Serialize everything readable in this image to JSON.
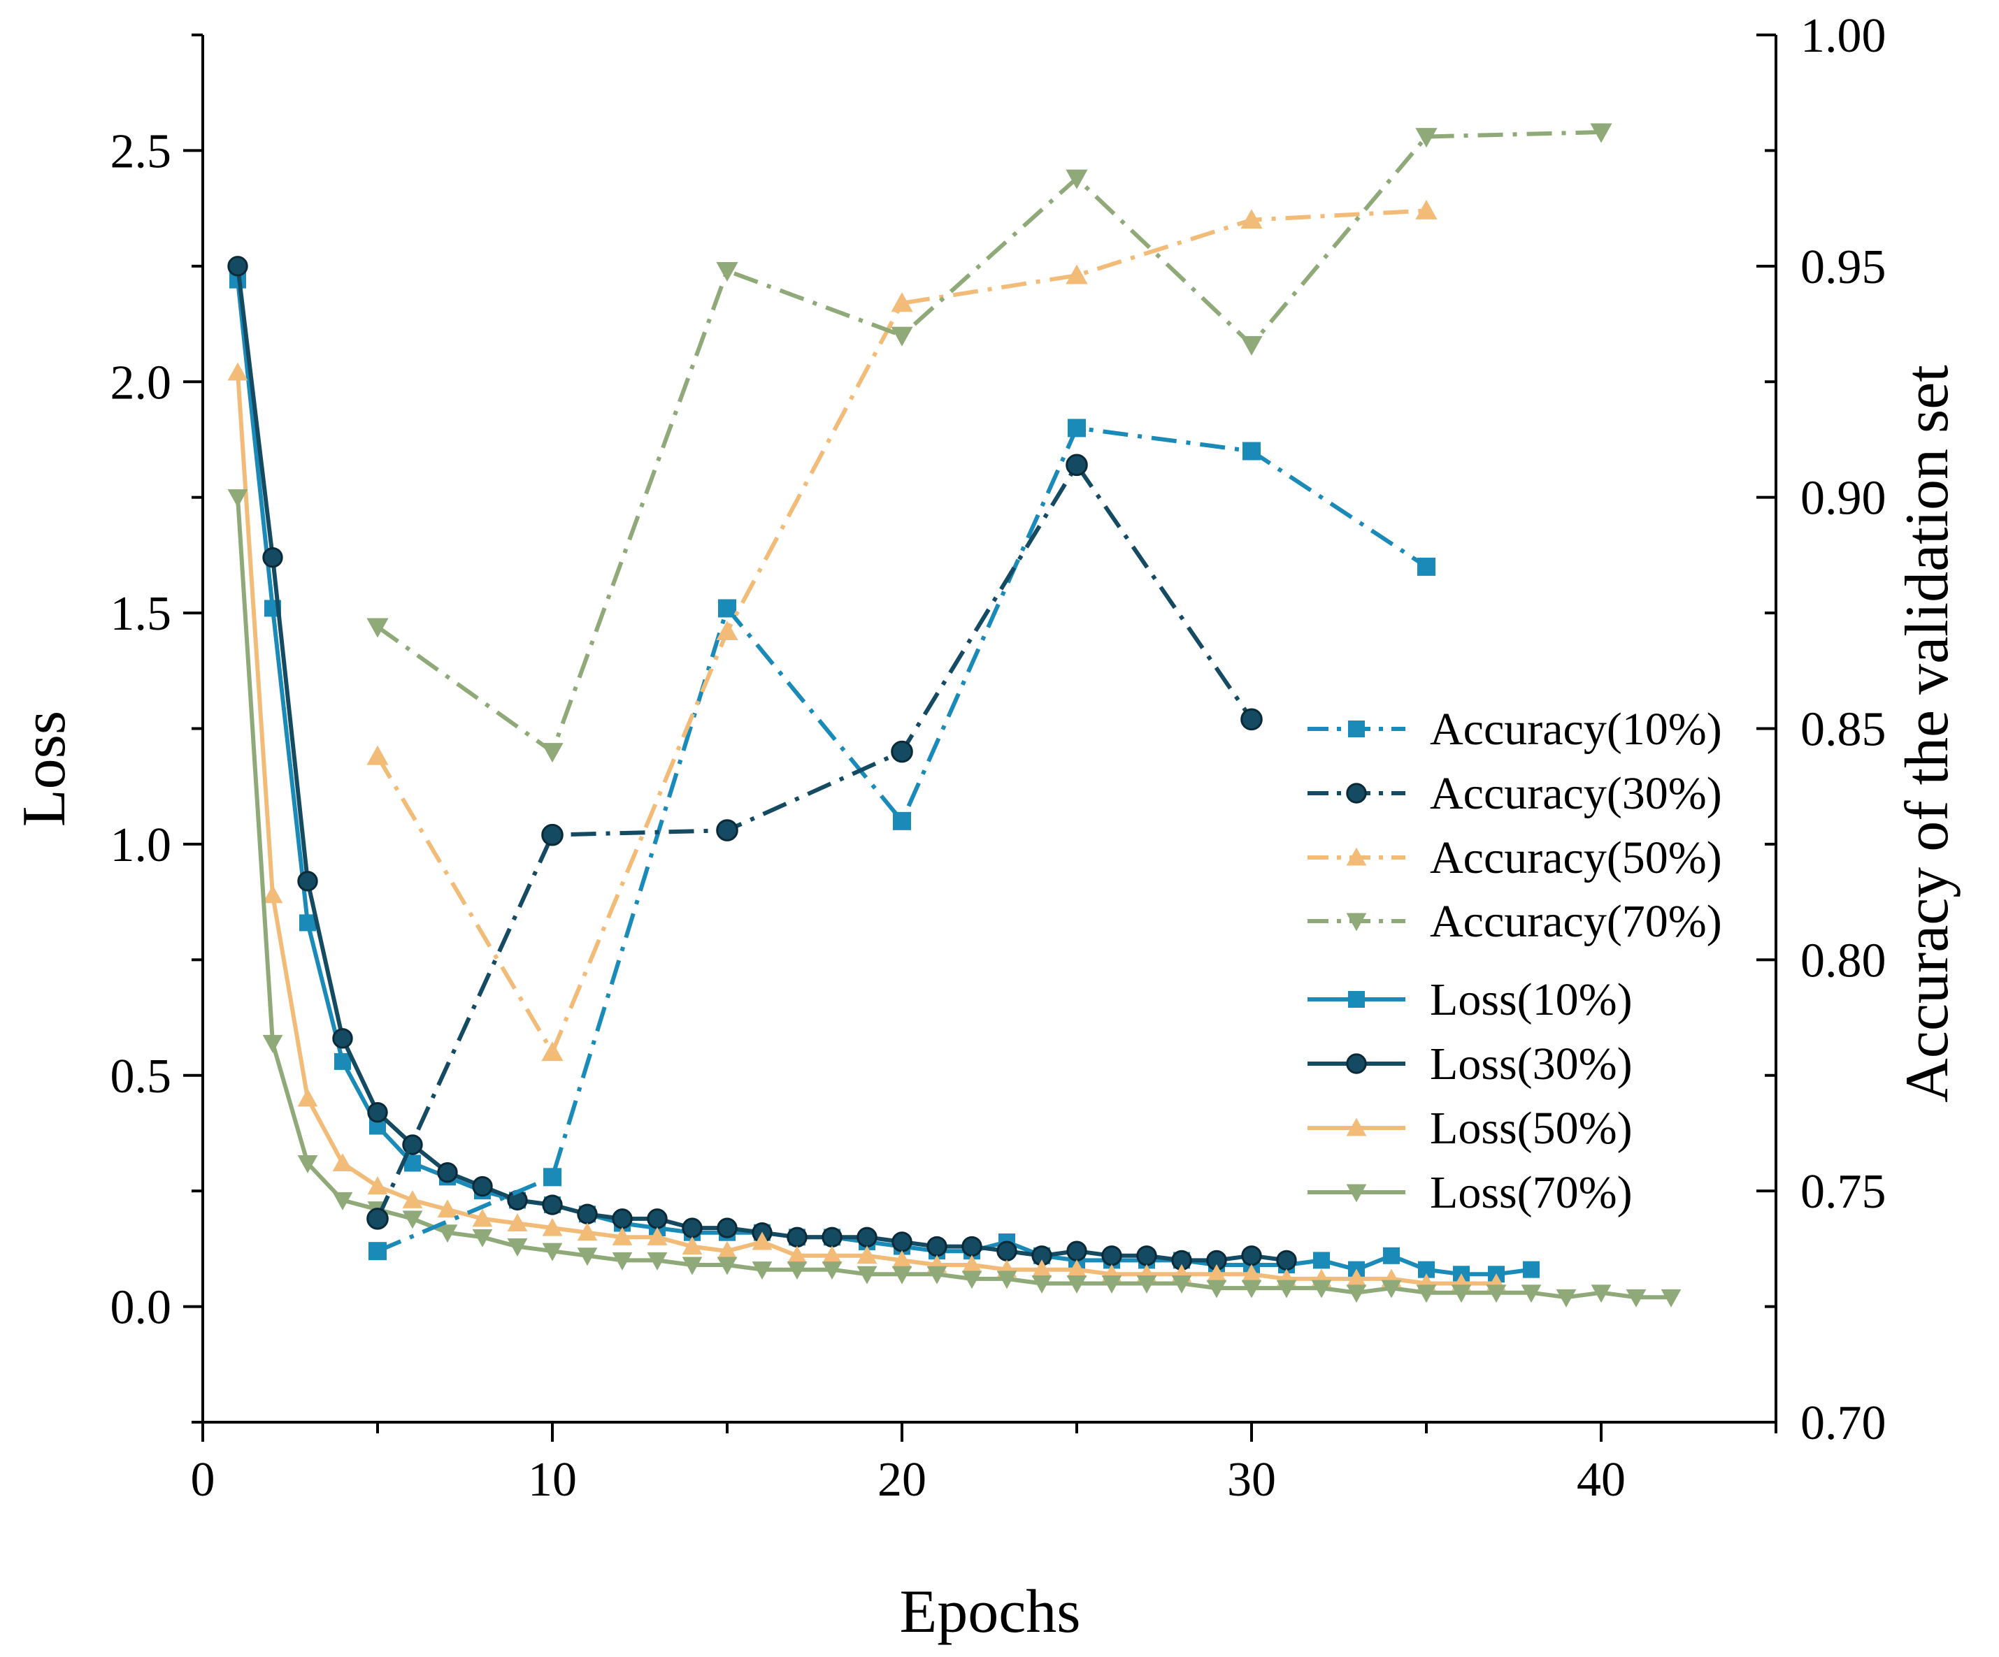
{
  "chart_data": {
    "type": "line",
    "title": "",
    "xlabel": "Epochs",
    "ylabel": "Loss",
    "y2label": "Accuracy of the validation set",
    "xlim": [
      0,
      45
    ],
    "ylim": [
      -0.25,
      2.75
    ],
    "y2lim": [
      0.7,
      1.0
    ],
    "xticks": [
      0,
      10,
      20,
      30,
      40
    ],
    "xtick_labels": [
      "0",
      "10",
      "20",
      "30",
      "40"
    ],
    "yticks": [
      0.0,
      0.5,
      1.0,
      1.5,
      2.0,
      2.5
    ],
    "ytick_labels": [
      "0.0",
      "0.5",
      "1.0",
      "1.5",
      "2.0",
      "2.5"
    ],
    "y2ticks": [
      0.7,
      0.75,
      0.8,
      0.85,
      0.9,
      0.95,
      1.0
    ],
    "y2tick_labels": [
      "0.70",
      "0.75",
      "0.80",
      "0.85",
      "0.90",
      "0.95",
      "1.00"
    ],
    "legend_position": "center-right",
    "series": [
      {
        "name": "Accuracy(10%)",
        "axis": "right",
        "style": "dashdot",
        "marker": "square",
        "color": "#1a8ab8",
        "x": [
          5,
          10,
          15,
          20,
          25,
          30,
          35
        ],
        "y": [
          0.737,
          0.753,
          0.876,
          0.83,
          0.915,
          0.91,
          0.885
        ]
      },
      {
        "name": "Accuracy(30%)",
        "axis": "right",
        "style": "dashdot",
        "marker": "circle",
        "color": "#154a63",
        "x": [
          5,
          10,
          15,
          20,
          25,
          30
        ],
        "y": [
          0.744,
          0.827,
          0.828,
          0.845,
          0.907,
          0.852
        ]
      },
      {
        "name": "Accuracy(50%)",
        "axis": "right",
        "style": "dashdot",
        "marker": "triangle-up",
        "color": "#f2bc78",
        "x": [
          5,
          10,
          15,
          20,
          25,
          30,
          35
        ],
        "y": [
          0.844,
          0.78,
          0.871,
          0.942,
          0.948,
          0.96,
          0.962
        ]
      },
      {
        "name": "Accuracy(70%)",
        "axis": "right",
        "style": "dashdot",
        "marker": "triangle-down",
        "color": "#8faa78",
        "x": [
          5,
          10,
          15,
          20,
          25,
          30,
          35,
          40
        ],
        "y": [
          0.872,
          0.845,
          0.949,
          0.935,
          0.969,
          0.933,
          0.978,
          0.979
        ]
      },
      {
        "name": "Loss(10%)",
        "axis": "left",
        "style": "solid",
        "marker": "square",
        "color": "#1a8ab8",
        "x": [
          1,
          2,
          3,
          4,
          5,
          6,
          7,
          8,
          9,
          10,
          11,
          12,
          13,
          14,
          15,
          16,
          17,
          18,
          19,
          20,
          21,
          22,
          23,
          24,
          25,
          26,
          27,
          28,
          29,
          30,
          31,
          32,
          33,
          34,
          35,
          36,
          37,
          38
        ],
        "y": [
          2.22,
          1.51,
          0.83,
          0.53,
          0.39,
          0.31,
          0.28,
          0.25,
          0.23,
          0.22,
          0.2,
          0.18,
          0.17,
          0.16,
          0.16,
          0.16,
          0.15,
          0.15,
          0.14,
          0.13,
          0.12,
          0.12,
          0.14,
          0.11,
          0.1,
          0.1,
          0.1,
          0.1,
          0.09,
          0.09,
          0.09,
          0.1,
          0.08,
          0.11,
          0.08,
          0.07,
          0.07,
          0.08
        ]
      },
      {
        "name": "Loss(30%)",
        "axis": "left",
        "style": "solid",
        "marker": "circle",
        "color": "#154a63",
        "x": [
          1,
          2,
          3,
          4,
          5,
          6,
          7,
          8,
          9,
          10,
          11,
          12,
          13,
          14,
          15,
          16,
          17,
          18,
          19,
          20,
          21,
          22,
          23,
          24,
          25,
          26,
          27,
          28,
          29,
          30,
          31
        ],
        "y": [
          2.25,
          1.62,
          0.92,
          0.58,
          0.42,
          0.35,
          0.29,
          0.26,
          0.23,
          0.22,
          0.2,
          0.19,
          0.19,
          0.17,
          0.17,
          0.16,
          0.15,
          0.15,
          0.15,
          0.14,
          0.13,
          0.13,
          0.12,
          0.11,
          0.12,
          0.11,
          0.11,
          0.1,
          0.1,
          0.11,
          0.1
        ]
      },
      {
        "name": "Loss(50%)",
        "axis": "left",
        "style": "solid",
        "marker": "triangle-up",
        "color": "#f2bc78",
        "x": [
          1,
          2,
          3,
          4,
          5,
          6,
          7,
          8,
          9,
          10,
          11,
          12,
          13,
          14,
          15,
          16,
          17,
          18,
          19,
          20,
          21,
          22,
          23,
          24,
          25,
          26,
          27,
          28,
          29,
          30,
          31,
          32,
          33,
          34,
          35,
          36,
          37
        ],
        "y": [
          2.02,
          0.89,
          0.45,
          0.31,
          0.26,
          0.23,
          0.21,
          0.19,
          0.18,
          0.17,
          0.16,
          0.15,
          0.15,
          0.13,
          0.12,
          0.14,
          0.11,
          0.11,
          0.11,
          0.1,
          0.09,
          0.09,
          0.08,
          0.08,
          0.08,
          0.07,
          0.07,
          0.07,
          0.07,
          0.07,
          0.06,
          0.06,
          0.06,
          0.06,
          0.05,
          0.05,
          0.05
        ]
      },
      {
        "name": "Loss(70%)",
        "axis": "left",
        "style": "solid",
        "marker": "triangle-down",
        "color": "#8faa78",
        "x": [
          1,
          2,
          3,
          4,
          5,
          6,
          7,
          8,
          9,
          10,
          11,
          12,
          13,
          14,
          15,
          16,
          17,
          18,
          19,
          20,
          21,
          22,
          23,
          24,
          25,
          26,
          27,
          28,
          29,
          30,
          31,
          32,
          33,
          34,
          35,
          36,
          37,
          38,
          39,
          40,
          41,
          42
        ],
        "y": [
          1.75,
          0.57,
          0.31,
          0.23,
          0.21,
          0.19,
          0.16,
          0.15,
          0.13,
          0.12,
          0.11,
          0.1,
          0.1,
          0.09,
          0.09,
          0.08,
          0.08,
          0.08,
          0.07,
          0.07,
          0.07,
          0.06,
          0.06,
          0.05,
          0.05,
          0.05,
          0.05,
          0.05,
          0.04,
          0.04,
          0.04,
          0.04,
          0.03,
          0.04,
          0.03,
          0.03,
          0.03,
          0.03,
          0.02,
          0.03,
          0.02,
          0.02
        ]
      }
    ]
  }
}
